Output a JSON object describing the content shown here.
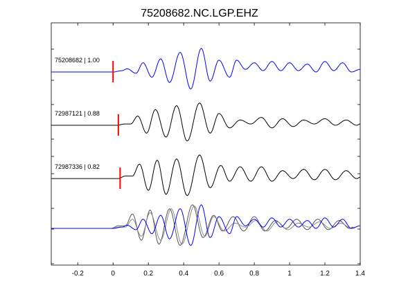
{
  "chart_data": {
    "type": "line",
    "title": "75208682.NC.LGP.EHZ",
    "xlabel": "",
    "ylabel": "",
    "xlim": [
      -0.35,
      1.4
    ],
    "xticks": [
      -0.2,
      0,
      0.2,
      0.4,
      0.6,
      0.8,
      1,
      1.2,
      1.4
    ],
    "xtick_labels": [
      "-0.2",
      "0",
      "0.2",
      "0.4",
      "0.6",
      "0.8",
      "1",
      "1.2",
      "1.4"
    ],
    "grid": false,
    "legend": "none",
    "colors": {
      "primary": "#0000ff",
      "secondary": "#000000",
      "overlay_gray": "#888888",
      "pick": "#ff0000",
      "axes": "#000000"
    },
    "traces": [
      {
        "label": "75208682 | 1.00",
        "color": "#0000ff",
        "pick_time": 0.0,
        "shift": 0.0,
        "waveform_peaks": [
          [
            -0.35,
            0
          ],
          [
            0.0,
            0
          ],
          [
            0.05,
            0.05
          ],
          [
            0.08,
            0.12
          ],
          [
            0.13,
            -0.05
          ],
          [
            0.17,
            0.35
          ],
          [
            0.22,
            -0.2
          ],
          [
            0.27,
            0.5
          ],
          [
            0.32,
            -0.4
          ],
          [
            0.38,
            0.75
          ],
          [
            0.44,
            -0.65
          ],
          [
            0.5,
            0.9
          ],
          [
            0.55,
            -0.35
          ],
          [
            0.6,
            0.45
          ],
          [
            0.66,
            -0.2
          ],
          [
            0.7,
            0.45
          ],
          [
            0.75,
            0.1
          ],
          [
            0.8,
            0.35
          ],
          [
            0.85,
            0.05
          ],
          [
            0.9,
            0.4
          ],
          [
            0.95,
            0.05
          ],
          [
            1.0,
            0.35
          ],
          [
            1.05,
            0.05
          ],
          [
            1.1,
            0.3
          ],
          [
            1.15,
            0.0
          ],
          [
            1.2,
            0.4
          ],
          [
            1.25,
            0.05
          ],
          [
            1.3,
            0.35
          ],
          [
            1.35,
            0.0
          ],
          [
            1.4,
            0.1
          ]
        ]
      },
      {
        "label": "72987121 | 0.88",
        "color": "#000000",
        "pick_time": 0.03,
        "shift": 0.03,
        "waveform_peaks": [
          [
            -0.35,
            0
          ],
          [
            0.02,
            0
          ],
          [
            0.07,
            0.05
          ],
          [
            0.1,
            0.05
          ],
          [
            0.14,
            0.35
          ],
          [
            0.19,
            -0.3
          ],
          [
            0.24,
            0.6
          ],
          [
            0.3,
            -0.45
          ],
          [
            0.36,
            0.75
          ],
          [
            0.42,
            -0.6
          ],
          [
            0.49,
            0.85
          ],
          [
            0.55,
            -0.3
          ],
          [
            0.6,
            0.45
          ],
          [
            0.66,
            -0.1
          ],
          [
            0.72,
            0.2
          ],
          [
            0.78,
            0.05
          ],
          [
            0.84,
            0.3
          ],
          [
            0.9,
            -0.1
          ],
          [
            0.96,
            0.25
          ],
          [
            1.02,
            -0.05
          ],
          [
            1.08,
            0.2
          ],
          [
            1.14,
            0.05
          ],
          [
            1.2,
            0.25
          ],
          [
            1.26,
            0.0
          ],
          [
            1.32,
            0.2
          ],
          [
            1.38,
            0.0
          ],
          [
            1.4,
            0.05
          ]
        ]
      },
      {
        "label": "72987336 | 0.82",
        "color": "#000000",
        "pick_time": 0.04,
        "shift": 0.04,
        "waveform_peaks": [
          [
            -0.35,
            0
          ],
          [
            0.03,
            0
          ],
          [
            0.07,
            0.1
          ],
          [
            0.11,
            0.1
          ],
          [
            0.15,
            0.55
          ],
          [
            0.2,
            -0.45
          ],
          [
            0.25,
            0.7
          ],
          [
            0.3,
            -0.6
          ],
          [
            0.36,
            0.75
          ],
          [
            0.42,
            -0.65
          ],
          [
            0.49,
            0.9
          ],
          [
            0.55,
            -0.35
          ],
          [
            0.61,
            0.5
          ],
          [
            0.66,
            -0.1
          ],
          [
            0.72,
            0.45
          ],
          [
            0.78,
            -0.1
          ],
          [
            0.84,
            0.45
          ],
          [
            0.9,
            -0.1
          ],
          [
            0.96,
            0.3
          ],
          [
            1.02,
            0.0
          ],
          [
            1.08,
            0.35
          ],
          [
            1.14,
            -0.05
          ],
          [
            1.2,
            0.35
          ],
          [
            1.26,
            -0.05
          ],
          [
            1.32,
            0.3
          ],
          [
            1.38,
            0.0
          ],
          [
            1.4,
            0.05
          ]
        ]
      }
    ],
    "overlay": {
      "description_of_content": "stack of all three traces aligned",
      "traces": [
        0,
        1,
        2
      ]
    }
  }
}
